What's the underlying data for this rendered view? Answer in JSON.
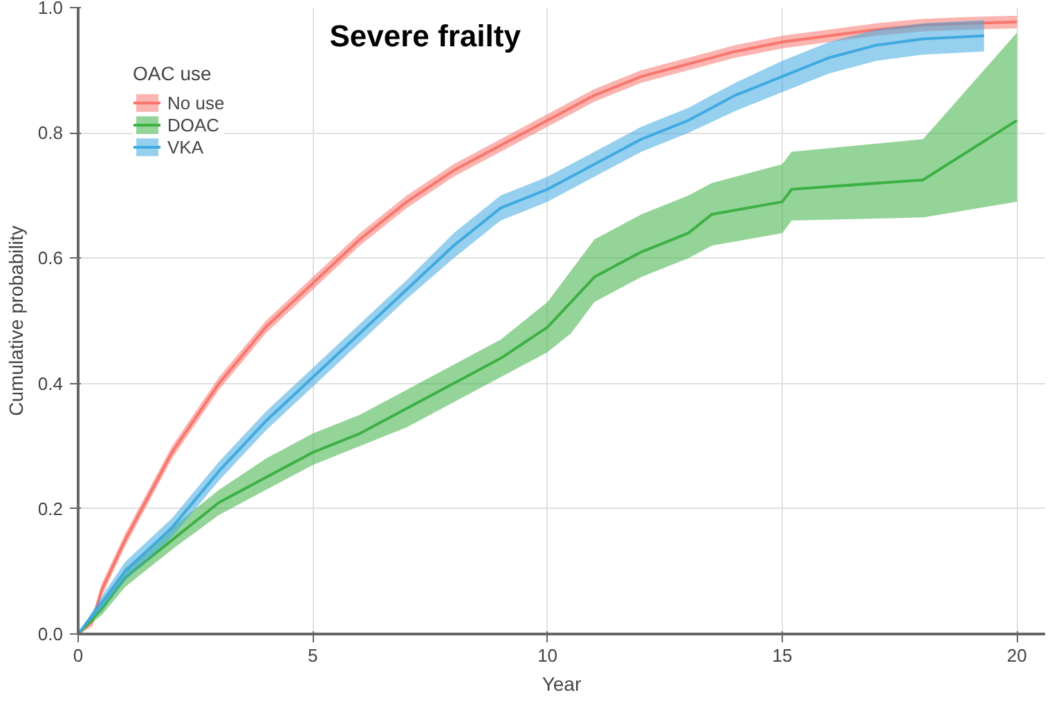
{
  "chart_data": {
    "type": "line",
    "title": "Severe frailty",
    "xlabel": "Year",
    "ylabel": "Cumulative probability",
    "legend_title": "OAC use",
    "legend": "top left",
    "grid": true,
    "xlim": [
      0,
      20.6
    ],
    "ylim": [
      0,
      1.0
    ],
    "xticks": [
      0,
      5,
      10,
      15,
      20
    ],
    "yticks": [
      {
        "value": 0,
        "label": "0.0"
      },
      0.2,
      0.4,
      0.6,
      0.8,
      {
        "value": 1,
        "label": "1.0"
      }
    ],
    "series": [
      {
        "name": "No use",
        "color": "#f8766d",
        "x": [
          0,
          0.3,
          0.5,
          1,
          2,
          3,
          4,
          5,
          6,
          7,
          8,
          9,
          10,
          11,
          12,
          13,
          14,
          15,
          16,
          17,
          18,
          19,
          20
        ],
        "values": [
          0,
          0.02,
          0.07,
          0.15,
          0.29,
          0.4,
          0.49,
          0.56,
          0.63,
          0.69,
          0.74,
          0.78,
          0.82,
          0.86,
          0.89,
          0.91,
          0.93,
          0.945,
          0.955,
          0.965,
          0.972,
          0.975,
          0.977
        ],
        "lower": [
          0,
          0.012,
          0.06,
          0.14,
          0.28,
          0.39,
          0.48,
          0.55,
          0.62,
          0.68,
          0.73,
          0.77,
          0.81,
          0.85,
          0.88,
          0.9,
          0.92,
          0.935,
          0.945,
          0.955,
          0.962,
          0.965,
          0.967
        ],
        "upper": [
          0,
          0.028,
          0.08,
          0.16,
          0.3,
          0.41,
          0.5,
          0.57,
          0.64,
          0.7,
          0.75,
          0.79,
          0.83,
          0.87,
          0.9,
          0.92,
          0.94,
          0.955,
          0.965,
          0.975,
          0.982,
          0.985,
          0.987
        ]
      },
      {
        "name": "DOAC",
        "color": "#3cb043",
        "x": [
          0,
          0.5,
          1,
          2,
          3,
          4,
          5,
          6,
          7,
          8,
          9,
          10,
          10.5,
          11,
          12,
          13,
          13.5,
          15,
          15.2,
          18,
          20
        ],
        "values": [
          0,
          0.04,
          0.09,
          0.15,
          0.21,
          0.25,
          0.29,
          0.32,
          0.36,
          0.4,
          0.44,
          0.49,
          0.53,
          0.57,
          0.61,
          0.64,
          0.67,
          0.69,
          0.71,
          0.725,
          0.82
        ],
        "lower": [
          0,
          0.03,
          0.075,
          0.135,
          0.19,
          0.23,
          0.27,
          0.3,
          0.33,
          0.37,
          0.41,
          0.45,
          0.48,
          0.53,
          0.57,
          0.6,
          0.62,
          0.64,
          0.66,
          0.665,
          0.69
        ],
        "upper": [
          0,
          0.05,
          0.105,
          0.17,
          0.23,
          0.28,
          0.32,
          0.35,
          0.39,
          0.43,
          0.47,
          0.53,
          0.58,
          0.63,
          0.67,
          0.7,
          0.72,
          0.75,
          0.77,
          0.79,
          0.96
        ]
      },
      {
        "name": "VKA",
        "color": "#3fa9e0",
        "x": [
          0,
          0.5,
          1,
          2,
          3,
          4,
          5,
          6,
          7,
          8,
          9,
          10,
          11,
          12,
          13,
          14,
          15,
          16,
          17,
          18,
          19.3
        ],
        "values": [
          0,
          0.05,
          0.1,
          0.17,
          0.26,
          0.34,
          0.41,
          0.48,
          0.55,
          0.62,
          0.68,
          0.71,
          0.75,
          0.79,
          0.82,
          0.86,
          0.89,
          0.92,
          0.94,
          0.95,
          0.955
        ],
        "lower": [
          0,
          0.04,
          0.085,
          0.155,
          0.245,
          0.325,
          0.395,
          0.465,
          0.535,
          0.6,
          0.66,
          0.69,
          0.73,
          0.77,
          0.8,
          0.835,
          0.865,
          0.895,
          0.915,
          0.925,
          0.93
        ],
        "upper": [
          0,
          0.06,
          0.115,
          0.185,
          0.275,
          0.355,
          0.425,
          0.495,
          0.565,
          0.64,
          0.7,
          0.73,
          0.77,
          0.81,
          0.84,
          0.88,
          0.915,
          0.945,
          0.965,
          0.975,
          0.98
        ]
      }
    ]
  }
}
